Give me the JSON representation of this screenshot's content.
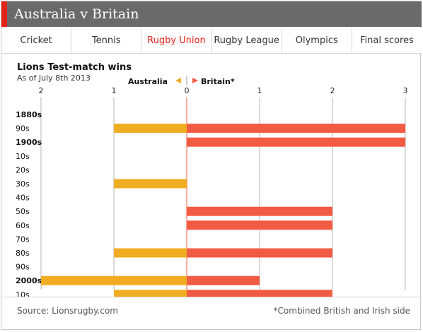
{
  "header": {
    "title": "Australia v Britain"
  },
  "tabs": [
    {
      "label": "Cricket",
      "active": false
    },
    {
      "label": "Tennis",
      "active": false
    },
    {
      "label": "Rugby Union",
      "active": true
    },
    {
      "label": "Rugby League",
      "active": false
    },
    {
      "label": "Olympics",
      "active": false
    },
    {
      "label": "Final scores",
      "active": false
    }
  ],
  "colors": {
    "australia": "#f0ad22",
    "britain": "#f25b43",
    "accent": "#e2231a"
  },
  "footer": {
    "source": "Source: Lionsrugby.com",
    "note": "*Combined British and Irish side"
  },
  "chart_data": {
    "type": "bar",
    "orientation": "horizontal-diverging",
    "title": "Lions Test-match wins",
    "subtitle": "As of July 8th 2013",
    "legend": {
      "left": "Australia",
      "right": "Britain*",
      "placement": "top-center"
    },
    "xlim": [
      -2,
      3
    ],
    "xticks": [
      -2,
      -1,
      0,
      1,
      2,
      3
    ],
    "xtick_labels": [
      "2",
      "1",
      "0",
      "1",
      "2",
      "3"
    ],
    "categories": [
      "1880s",
      "90s",
      "1900s",
      "10s",
      "20s",
      "30s",
      "40s",
      "50s",
      "60s",
      "70s",
      "80s",
      "90s",
      "2000s",
      "10s"
    ],
    "bold_categories": [
      "1880s",
      "1900s",
      "2000s"
    ],
    "series": [
      {
        "name": "Australia",
        "values": [
          0,
          1,
          0,
          0,
          0,
          1,
          0,
          0,
          0,
          0,
          1,
          0,
          2,
          1
        ]
      },
      {
        "name": "Britain*",
        "values": [
          0,
          3,
          3,
          0,
          0,
          0,
          0,
          2,
          2,
          0,
          2,
          0,
          1,
          2
        ]
      }
    ],
    "grid": true
  }
}
